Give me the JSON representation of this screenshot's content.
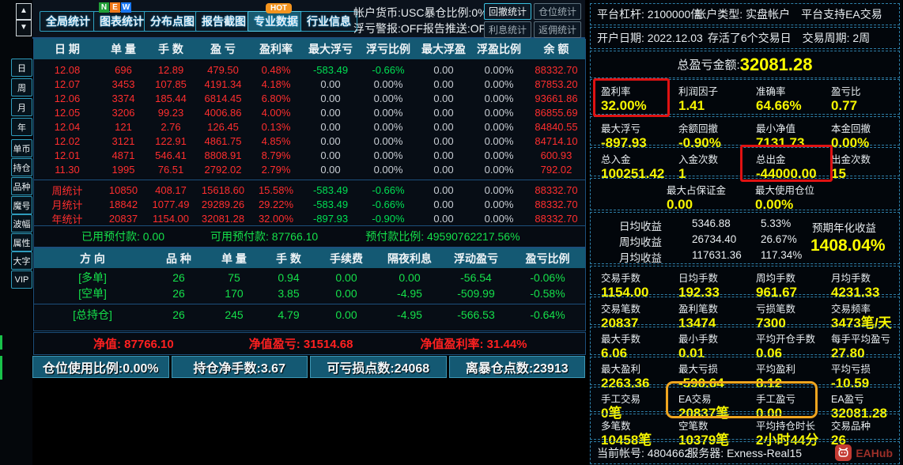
{
  "toolbar": {
    "tabs": [
      {
        "label": "全局统计",
        "selected": false,
        "badge": null
      },
      {
        "label": "图表统计",
        "selected": false,
        "badge": "NEW"
      },
      {
        "label": "分布点图",
        "selected": false,
        "badge": null
      },
      {
        "label": "报告截图",
        "selected": false,
        "badge": null
      },
      {
        "label": "专业数据",
        "selected": true,
        "badge": "HOT"
      },
      {
        "label": "行业信息",
        "selected": false,
        "badge": null
      }
    ],
    "new_badge_letters": [
      "N",
      "E",
      "W"
    ],
    "new_badge_colors": [
      "#21a038",
      "#f07818",
      "#1877f2"
    ],
    "hot_badge": "HOT",
    "info_line1a": "帐户货币:USC",
    "info_line1b": "暴仓比例:0%",
    "info_line2a": "浮亏警报:OFF",
    "info_line2b": "报告推送:OFF",
    "stat_buttons": [
      {
        "label": "回撤统计",
        "active": true
      },
      {
        "label": "仓位统计",
        "active": false
      },
      {
        "label": "利息统计",
        "active": false
      },
      {
        "label": "返佣统计",
        "active": false
      }
    ]
  },
  "sidebar": {
    "up_arrow": "▲",
    "down_arrow": "▼",
    "items": [
      "日",
      "周",
      "月",
      "年",
      "单币",
      "持仓",
      "品种",
      "魔号",
      "波幅",
      "属性",
      "大字",
      "VIP"
    ]
  },
  "daily_table": {
    "headers": [
      "日 期",
      "单 量",
      "手 数",
      "盈 亏",
      "盈利率",
      "最大浮亏",
      "浮亏比例",
      "最大浮盈",
      "浮盈比例",
      "余 额"
    ],
    "rows": [
      [
        "12.08",
        "696",
        "12.89",
        "479.50",
        "0.48%",
        "-583.49",
        "-0.66%",
        "0.00",
        "0.00%",
        "88332.70"
      ],
      [
        "12.07",
        "3453",
        "107.85",
        "4191.34",
        "4.18%",
        "0.00",
        "0.00%",
        "0.00",
        "0.00%",
        "87853.20"
      ],
      [
        "12.06",
        "3374",
        "185.44",
        "6814.45",
        "6.80%",
        "0.00",
        "0.00%",
        "0.00",
        "0.00%",
        "93661.86"
      ],
      [
        "12.05",
        "3206",
        "99.23",
        "4006.86",
        "4.00%",
        "0.00",
        "0.00%",
        "0.00",
        "0.00%",
        "86855.69"
      ],
      [
        "12.04",
        "121",
        "2.76",
        "126.45",
        "0.13%",
        "0.00",
        "0.00%",
        "0.00",
        "0.00%",
        "84840.55"
      ],
      [
        "12.02",
        "3121",
        "122.91",
        "4861.75",
        "4.85%",
        "0.00",
        "0.00%",
        "0.00",
        "0.00%",
        "84714.10"
      ],
      [
        "12.01",
        "4871",
        "546.41",
        "8808.91",
        "8.79%",
        "0.00",
        "0.00%",
        "0.00",
        "0.00%",
        "600.93"
      ],
      [
        "11.30",
        "1995",
        "76.51",
        "2792.02",
        "2.79%",
        "0.00",
        "0.00%",
        "0.00",
        "0.00%",
        "792.02"
      ]
    ],
    "summary_rows": [
      [
        "周统计",
        "10850",
        "408.17",
        "15618.60",
        "15.58%",
        "-583.49",
        "-0.66%",
        "0.00",
        "0.00%",
        "88332.70"
      ],
      [
        "月统计",
        "18842",
        "1077.49",
        "29289.26",
        "29.22%",
        "-583.49",
        "-0.66%",
        "0.00",
        "0.00%",
        "88332.70"
      ],
      [
        "年统计",
        "20837",
        "1154.00",
        "32081.28",
        "32.00%",
        "-897.93",
        "-0.90%",
        "0.00",
        "0.00%",
        "88332.70"
      ]
    ]
  },
  "margin_row": [
    {
      "label": "已用预付款:",
      "value": "0.00"
    },
    {
      "label": "可用预付款:",
      "value": "87766.10"
    },
    {
      "label": "预付款比例:",
      "value": "49590762217.56%"
    }
  ],
  "positions_table": {
    "headers": [
      "方 向",
      "品 种",
      "单 量",
      "手 数",
      "手续费",
      "隔夜利息",
      "浮动盈亏",
      "盈亏比例"
    ],
    "rows": [
      [
        "[多单]",
        "26",
        "75",
        "0.94",
        "0.00",
        "0.00",
        "-56.54",
        "-0.06%"
      ],
      [
        "[空单]",
        "26",
        "170",
        "3.85",
        "0.00",
        "-4.95",
        "-509.99",
        "-0.58%"
      ]
    ],
    "total_row": [
      "[总持仓]",
      "26",
      "245",
      "4.79",
      "0.00",
      "-4.95",
      "-566.53",
      "-0.64%"
    ]
  },
  "equity_row": [
    {
      "label": "净值:",
      "value": "87766.10"
    },
    {
      "label": "净值盈亏:",
      "value": "31514.68"
    },
    {
      "label": "净值盈利率:",
      "value": "31.44%"
    }
  ],
  "bottom_bar": [
    "仓位使用比例:0.00%",
    "持仓净手数:3.67",
    "可亏损点数:24068",
    "离暴仓点数:23913"
  ],
  "right_panel": {
    "line1": [
      "平台杠杆: 2100000倍",
      "帐户类型: 实盘帐户",
      "平台支持EA交易"
    ],
    "line2": [
      "开户日期: 2022.12.03",
      "存活了6个交易日",
      "交易周期: 2周"
    ],
    "total_pl": {
      "label": "总盈亏金额:",
      "value": "32081.28"
    },
    "stat_rows_a": [
      [
        {
          "label": "盈利率",
          "value": "32.00%"
        },
        {
          "label": "利润因子",
          "value": "1.41"
        },
        {
          "label": "准确率",
          "value": "64.66%"
        },
        {
          "label": "盈亏比",
          "value": "0.77"
        }
      ],
      [
        {
          "label": "最大浮亏",
          "value": "-897.93"
        },
        {
          "label": "余额回撤",
          "value": "-0.90%"
        },
        {
          "label": "最小净值",
          "value": "7131.73"
        },
        {
          "label": "本金回撤",
          "value": "0.00%"
        }
      ],
      [
        {
          "label": "总入金",
          "value": "100251.42"
        },
        {
          "label": "入金次数",
          "value": "1"
        },
        {
          "label": "总出金",
          "value": "-44000.00"
        },
        {
          "label": "出金次数",
          "value": "15"
        }
      ]
    ],
    "margin_cells": [
      {
        "label": "最大占保证金",
        "value": "0.00"
      },
      {
        "label": "最大使用仓位",
        "value": "0.00%"
      }
    ],
    "returns": {
      "rows": [
        [
          "日均收益",
          "5346.88",
          "5.33%"
        ],
        [
          "周均收益",
          "26734.40",
          "26.67%"
        ],
        [
          "月均收益",
          "117631.36",
          "117.34%"
        ]
      ],
      "annual_label": "预期年化收益",
      "annual_value": "1408.04%"
    },
    "stat_rows_b": [
      [
        {
          "label": "交易手数",
          "value": "1154.00"
        },
        {
          "label": "日均手数",
          "value": "192.33"
        },
        {
          "label": "周均手数",
          "value": "961.67"
        },
        {
          "label": "月均手数",
          "value": "4231.33"
        }
      ],
      [
        {
          "label": "交易笔数",
          "value": "20837"
        },
        {
          "label": "盈利笔数",
          "value": "13474"
        },
        {
          "label": "亏损笔数",
          "value": "7300"
        },
        {
          "label": "交易频率",
          "value": "3473笔/天"
        }
      ],
      [
        {
          "label": "最大手数",
          "value": "6.06"
        },
        {
          "label": "最小手数",
          "value": "0.01"
        },
        {
          "label": "平均开仓手数",
          "value": "0.06"
        },
        {
          "label": "每手平均盈亏",
          "value": "27.80"
        }
      ],
      [
        {
          "label": "最大盈利",
          "value": "2263.36"
        },
        {
          "label": "最大亏损",
          "value": "-590.64"
        },
        {
          "label": "平均盈利",
          "value": "8.12"
        },
        {
          "label": "平均亏损",
          "value": "-10.59"
        }
      ],
      [
        {
          "label": "手工交易",
          "value": "0笔"
        },
        {
          "label": "EA交易",
          "value": "20837笔"
        },
        {
          "label": "手工盈亏",
          "value": "0.00"
        },
        {
          "label": "EA盈亏",
          "value": "32081.28"
        }
      ],
      [
        {
          "label": "多笔数",
          "value": "10458笔"
        },
        {
          "label": "空笔数",
          "value": "10379笔"
        },
        {
          "label": "平均持仓时长",
          "value": "2小时44分"
        },
        {
          "label": "交易品种",
          "value": "26"
        }
      ]
    ],
    "footer": {
      "account": "当前帐号: 4804662",
      "server": "服务器: Exness-Real15",
      "brand": "EAHub"
    }
  },
  "colors": {
    "accent_teal": "#145973",
    "red": "#ff2e2e",
    "green": "#00e053",
    "yellow": "#f6f600",
    "cyan_border": "#2e9fc0",
    "annotation_red": "#e01212",
    "annotation_orange": "#f0a51f"
  }
}
